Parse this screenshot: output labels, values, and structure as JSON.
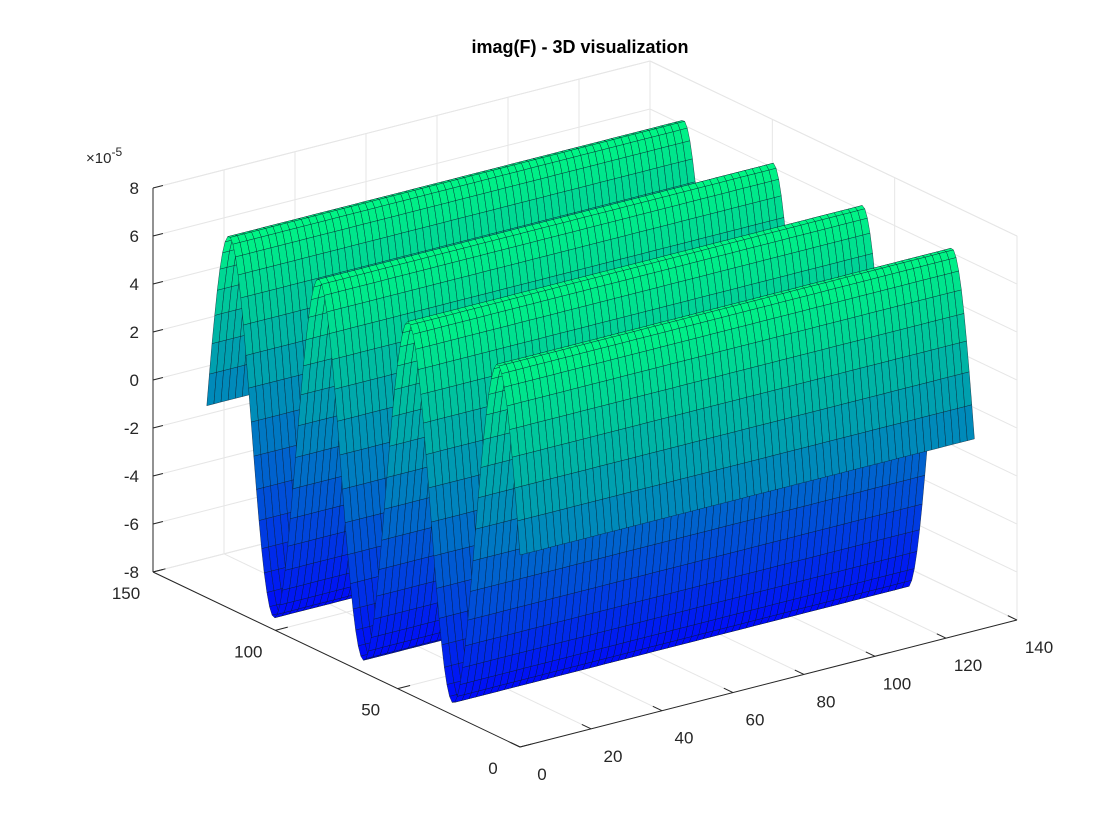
{
  "chart_data": {
    "type": "surface",
    "title": "imag(F) - 3D visualization",
    "xlabel": "",
    "ylabel": "",
    "zlabel": "",
    "z_exponent_label": "×10",
    "z_exponent_power": "-5",
    "xlim": [
      0,
      140
    ],
    "ylim": [
      0,
      150
    ],
    "zlim": [
      -8,
      8
    ],
    "x_ticks": [
      "0",
      "20",
      "40",
      "60",
      "80",
      "100",
      "120",
      "140"
    ],
    "y_ticks": [
      "0",
      "50",
      "100",
      "150"
    ],
    "z_ticks": [
      "-8",
      "-6",
      "-4",
      "-2",
      "0",
      "2",
      "4",
      "6",
      "8"
    ],
    "surface": {
      "function": "z = amplitude * sin(2*pi*cycles*(y - y_min)/(y_max - y_min)), constant along x",
      "x_range": [
        0,
        128
      ],
      "y_range": [
        0,
        128
      ],
      "amplitude": 7.5,
      "cycles": 3.5,
      "orientation": "waves vary along y, constant along x"
    },
    "colormap": "winter",
    "grid": true,
    "legend": "none"
  }
}
